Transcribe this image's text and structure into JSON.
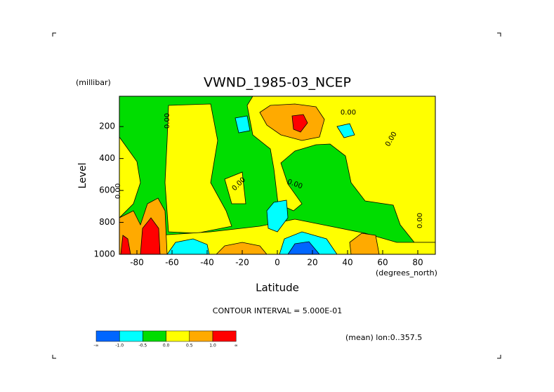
{
  "chart_data": {
    "type": "contour",
    "title": "VWND_1985-03_NCEP",
    "y_units": "(millibar)",
    "y_label": "Level",
    "x_label": "Latitude",
    "x_units": "(degrees_north)",
    "contour_interval": "CONTOUR INTERVAL = 5.000E-01",
    "footnote": "(mean) lon:0..357.5",
    "xlim": [
      -90,
      90
    ],
    "xticks": [
      -80,
      -60,
      -40,
      -20,
      0,
      20,
      40,
      60,
      80
    ],
    "ylim": [
      1000,
      10
    ],
    "yticks": [
      200,
      400,
      600,
      800,
      1000
    ],
    "contour_labels": [
      "0.00",
      "0.00",
      "0.00",
      "0.00",
      "0.00",
      "0.00",
      "0.00"
    ],
    "colorbar": {
      "colors": [
        "#0066ff",
        "#00ffff",
        "#00dd00",
        "#ffff00",
        "#ffaa00",
        "#ff0000"
      ],
      "labels": [
        "-∞",
        "-1.0",
        "-0.5",
        "0.0",
        "0.5",
        "1.0",
        "∞"
      ]
    }
  }
}
